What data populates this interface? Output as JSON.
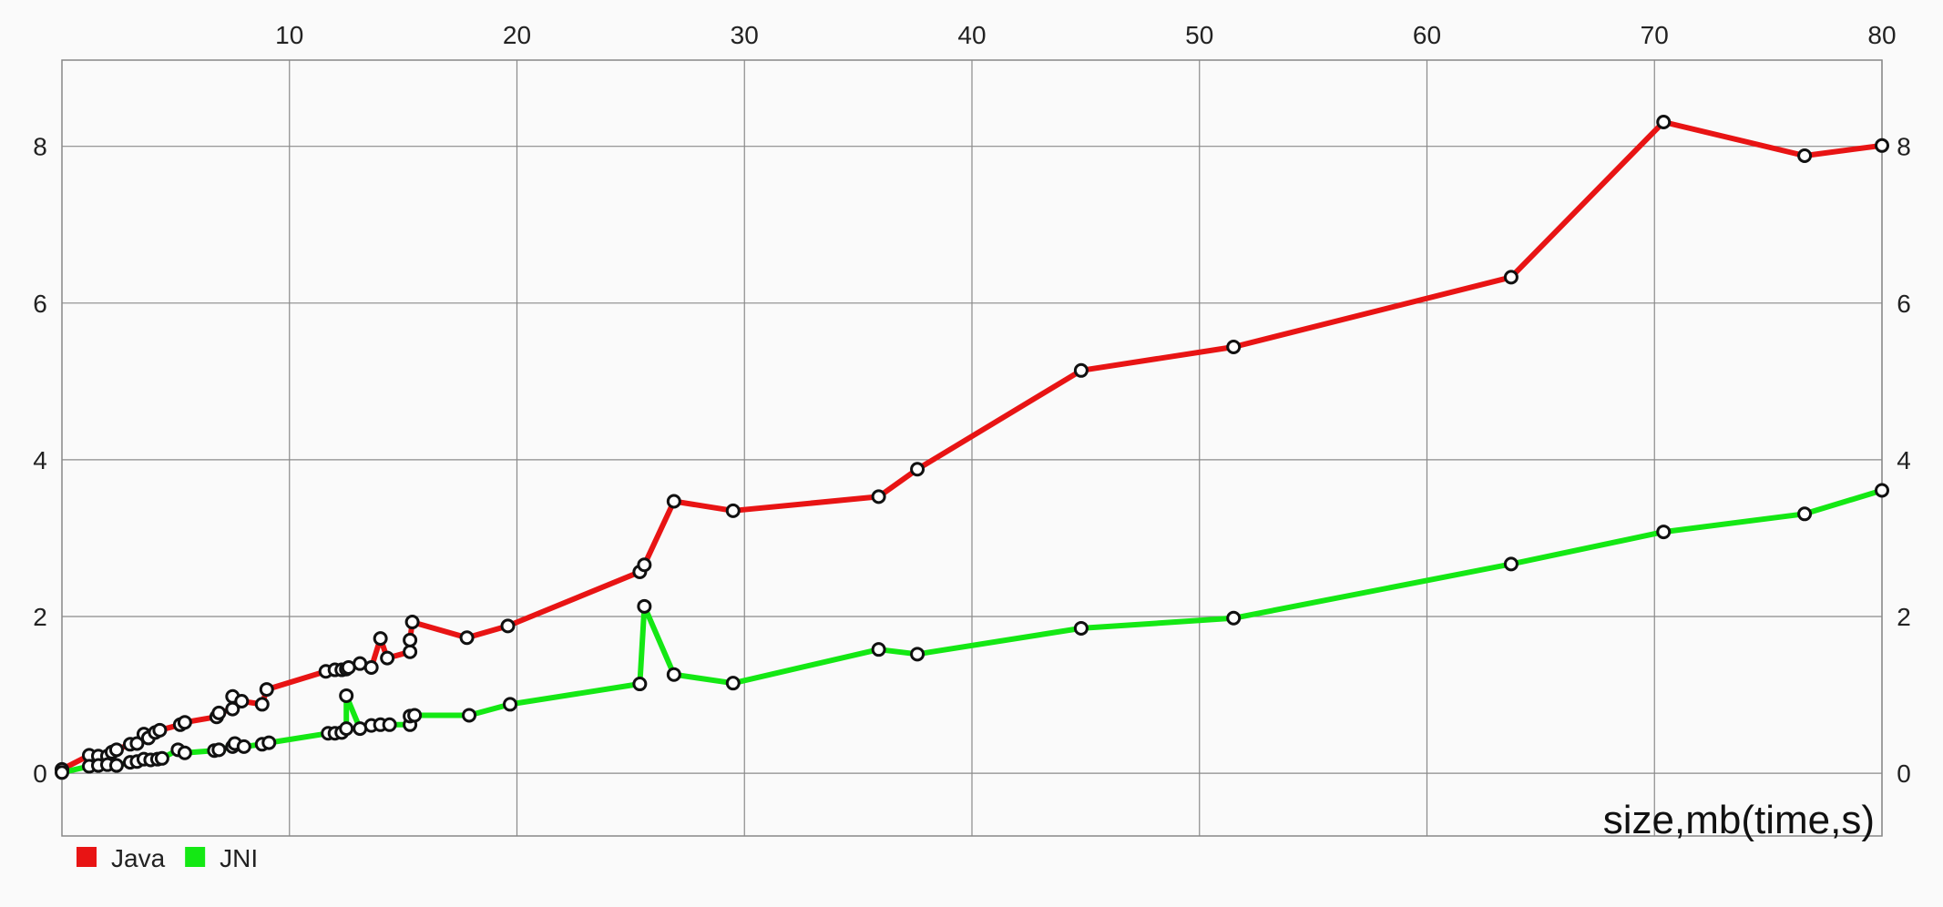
{
  "chart_data": {
    "type": "line",
    "xlabel": "size,mb(time,s)",
    "ylabel": "",
    "xlim": [
      0,
      80
    ],
    "ylim": [
      -0.8,
      9.1
    ],
    "x_ticks": [
      10,
      20,
      30,
      40,
      50,
      60,
      70,
      80
    ],
    "y_ticks": [
      0,
      2,
      4,
      6,
      8
    ],
    "grid": true,
    "legend": "bottom-left",
    "series": [
      {
        "name": "Java",
        "color": "#e81414",
        "points": [
          [
            0.0,
            0.05
          ],
          [
            1.2,
            0.23
          ],
          [
            1.6,
            0.22
          ],
          [
            2.0,
            0.22
          ],
          [
            2.2,
            0.27
          ],
          [
            2.4,
            0.3
          ],
          [
            3.0,
            0.37
          ],
          [
            3.3,
            0.38
          ],
          [
            3.6,
            0.5
          ],
          [
            3.8,
            0.45
          ],
          [
            4.1,
            0.52
          ],
          [
            4.3,
            0.55
          ],
          [
            5.2,
            0.62
          ],
          [
            5.4,
            0.65
          ],
          [
            6.8,
            0.72
          ],
          [
            6.9,
            0.77
          ],
          [
            7.5,
            0.82
          ],
          [
            7.5,
            0.98
          ],
          [
            7.9,
            0.92
          ],
          [
            8.8,
            0.88
          ],
          [
            9.0,
            1.07
          ],
          [
            11.6,
            1.3
          ],
          [
            12.0,
            1.32
          ],
          [
            12.3,
            1.32
          ],
          [
            12.5,
            1.33
          ],
          [
            12.6,
            1.35
          ],
          [
            13.1,
            1.4
          ],
          [
            13.6,
            1.35
          ],
          [
            14.0,
            1.72
          ],
          [
            14.3,
            1.47
          ],
          [
            15.3,
            1.55
          ],
          [
            15.3,
            1.7
          ],
          [
            15.4,
            1.93
          ],
          [
            17.8,
            1.73
          ],
          [
            19.6,
            1.88
          ],
          [
            25.4,
            2.57
          ],
          [
            25.6,
            2.66
          ],
          [
            26.9,
            3.47
          ],
          [
            29.5,
            3.35
          ],
          [
            35.9,
            3.53
          ],
          [
            37.6,
            3.88
          ],
          [
            44.8,
            5.14
          ],
          [
            51.5,
            5.44
          ],
          [
            63.7,
            6.33
          ],
          [
            70.4,
            8.31
          ],
          [
            76.6,
            7.88
          ],
          [
            80.0,
            8.01
          ]
        ]
      },
      {
        "name": "JNI",
        "color": "#14e814",
        "points": [
          [
            0.0,
            0.01
          ],
          [
            1.2,
            0.09
          ],
          [
            1.6,
            0.1
          ],
          [
            2.0,
            0.11
          ],
          [
            2.4,
            0.1
          ],
          [
            3.0,
            0.14
          ],
          [
            3.3,
            0.15
          ],
          [
            3.6,
            0.18
          ],
          [
            3.9,
            0.17
          ],
          [
            4.2,
            0.18
          ],
          [
            4.4,
            0.19
          ],
          [
            5.1,
            0.3
          ],
          [
            5.4,
            0.26
          ],
          [
            6.7,
            0.29
          ],
          [
            6.9,
            0.3
          ],
          [
            7.5,
            0.34
          ],
          [
            7.6,
            0.38
          ],
          [
            8.0,
            0.34
          ],
          [
            8.8,
            0.37
          ],
          [
            9.1,
            0.39
          ],
          [
            11.7,
            0.51
          ],
          [
            12.0,
            0.51
          ],
          [
            12.3,
            0.52
          ],
          [
            12.5,
            0.57
          ],
          [
            12.5,
            0.99
          ],
          [
            13.1,
            0.57
          ],
          [
            13.6,
            0.61
          ],
          [
            14.0,
            0.62
          ],
          [
            14.4,
            0.62
          ],
          [
            15.3,
            0.62
          ],
          [
            15.3,
            0.73
          ],
          [
            15.5,
            0.74
          ],
          [
            17.9,
            0.74
          ],
          [
            19.7,
            0.88
          ],
          [
            25.4,
            1.14
          ],
          [
            25.6,
            2.13
          ],
          [
            26.9,
            1.26
          ],
          [
            29.5,
            1.15
          ],
          [
            35.9,
            1.58
          ],
          [
            37.6,
            1.52
          ],
          [
            44.8,
            1.85
          ],
          [
            51.5,
            1.98
          ],
          [
            63.7,
            2.67
          ],
          [
            70.4,
            3.08
          ],
          [
            76.6,
            3.31
          ],
          [
            80.0,
            3.61
          ]
        ]
      }
    ]
  }
}
